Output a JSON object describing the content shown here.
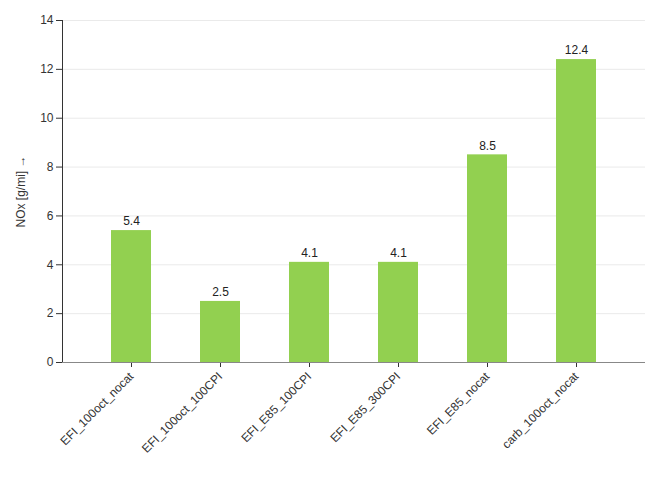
{
  "chart_data": {
    "type": "bar",
    "categories": [
      "EFI_100oct_nocat",
      "EFI_100oct_100CPI",
      "EFI_E85_100CPI",
      "EFI_E85_300CPI",
      "EFI_E85_nocat",
      "carb_100oct_nocat"
    ],
    "values": [
      5.4,
      2.5,
      4.1,
      4.1,
      8.5,
      12.4
    ],
    "color": "#92d050",
    "ylabel": "NOx [g/mi]",
    "ylim": [
      0,
      14
    ],
    "yticks": [
      0,
      2,
      4,
      6,
      8,
      10,
      12,
      14
    ],
    "grid": true,
    "data_labels": true
  }
}
